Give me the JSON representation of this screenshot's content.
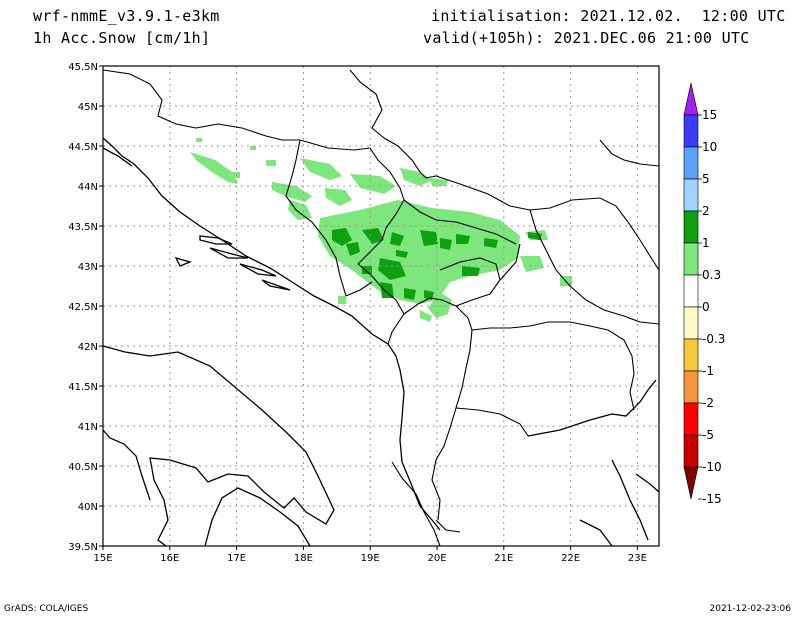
{
  "header": {
    "model": "wrf-nmmE_v3.9.1-e3km",
    "field": "1h Acc.Snow [cm/1h]",
    "init": "initialisation: 2021.12.02.  12:00 UTC",
    "valid": "valid(+105h): 2021.DEC.06 21:00 UTC"
  },
  "footer": {
    "left": "GrADS: COLA/IGES",
    "right": "2021-12-02-23:06"
  },
  "axes": {
    "lon_labels": [
      "15E",
      "16E",
      "17E",
      "18E",
      "19E",
      "20E",
      "21E",
      "22E",
      "23E"
    ],
    "lat_labels": [
      "45.5N",
      "45N",
      "44.5N",
      "44N",
      "43.5N",
      "43N",
      "42.5N",
      "42N",
      "41.5N",
      "41N",
      "40.5N",
      "40N",
      "39.5N"
    ]
  },
  "colorbar": {
    "labels": [
      "15",
      "10",
      "5",
      "2",
      "1",
      "0.3",
      "0",
      "-0.3",
      "-1",
      "-2",
      "-5",
      "-10",
      "-15"
    ],
    "colors": [
      "#a020f0",
      "#3c3cff",
      "#5aa0ff",
      "#a0d2ff",
      "#0fa00f",
      "#7de67d",
      "#ffffff",
      "#fffac8",
      "#f5c83c",
      "#f5963c",
      "#ff0000",
      "#c80000",
      "#800000"
    ]
  },
  "colors": {
    "light_green": "#7de67d",
    "dark_green": "#0fa00f",
    "grid": "#999999"
  }
}
